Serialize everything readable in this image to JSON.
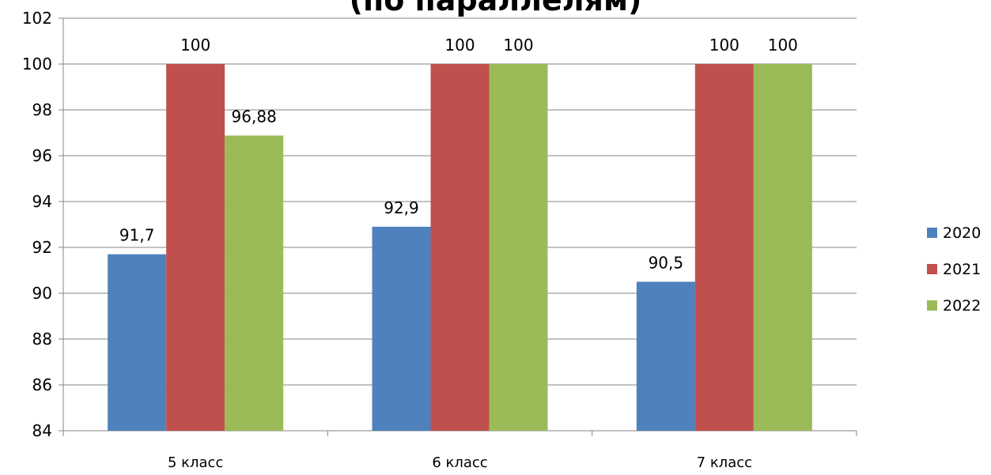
{
  "chart_data": {
    "type": "bar",
    "title": "(по параллелям)",
    "categories": [
      "5 класс",
      "6 класс",
      "7 класс"
    ],
    "series": [
      {
        "name": "2020",
        "values": [
          91.7,
          92.9,
          90.5
        ],
        "labels": [
          "91,7",
          "92,9",
          "90,5"
        ],
        "color": "#4F81BD"
      },
      {
        "name": "2021",
        "values": [
          100,
          100,
          100
        ],
        "labels": [
          "100",
          "100",
          "100"
        ],
        "color": "#C0504D"
      },
      {
        "name": "2022",
        "values": [
          96.88,
          100,
          100
        ],
        "labels": [
          "96,88",
          "100",
          "100"
        ],
        "color": "#9BBB59"
      }
    ],
    "ylim": [
      84,
      102
    ],
    "yticks": [
      84,
      86,
      88,
      90,
      92,
      94,
      96,
      98,
      100,
      102
    ],
    "grid": true,
    "legend": "right"
  }
}
